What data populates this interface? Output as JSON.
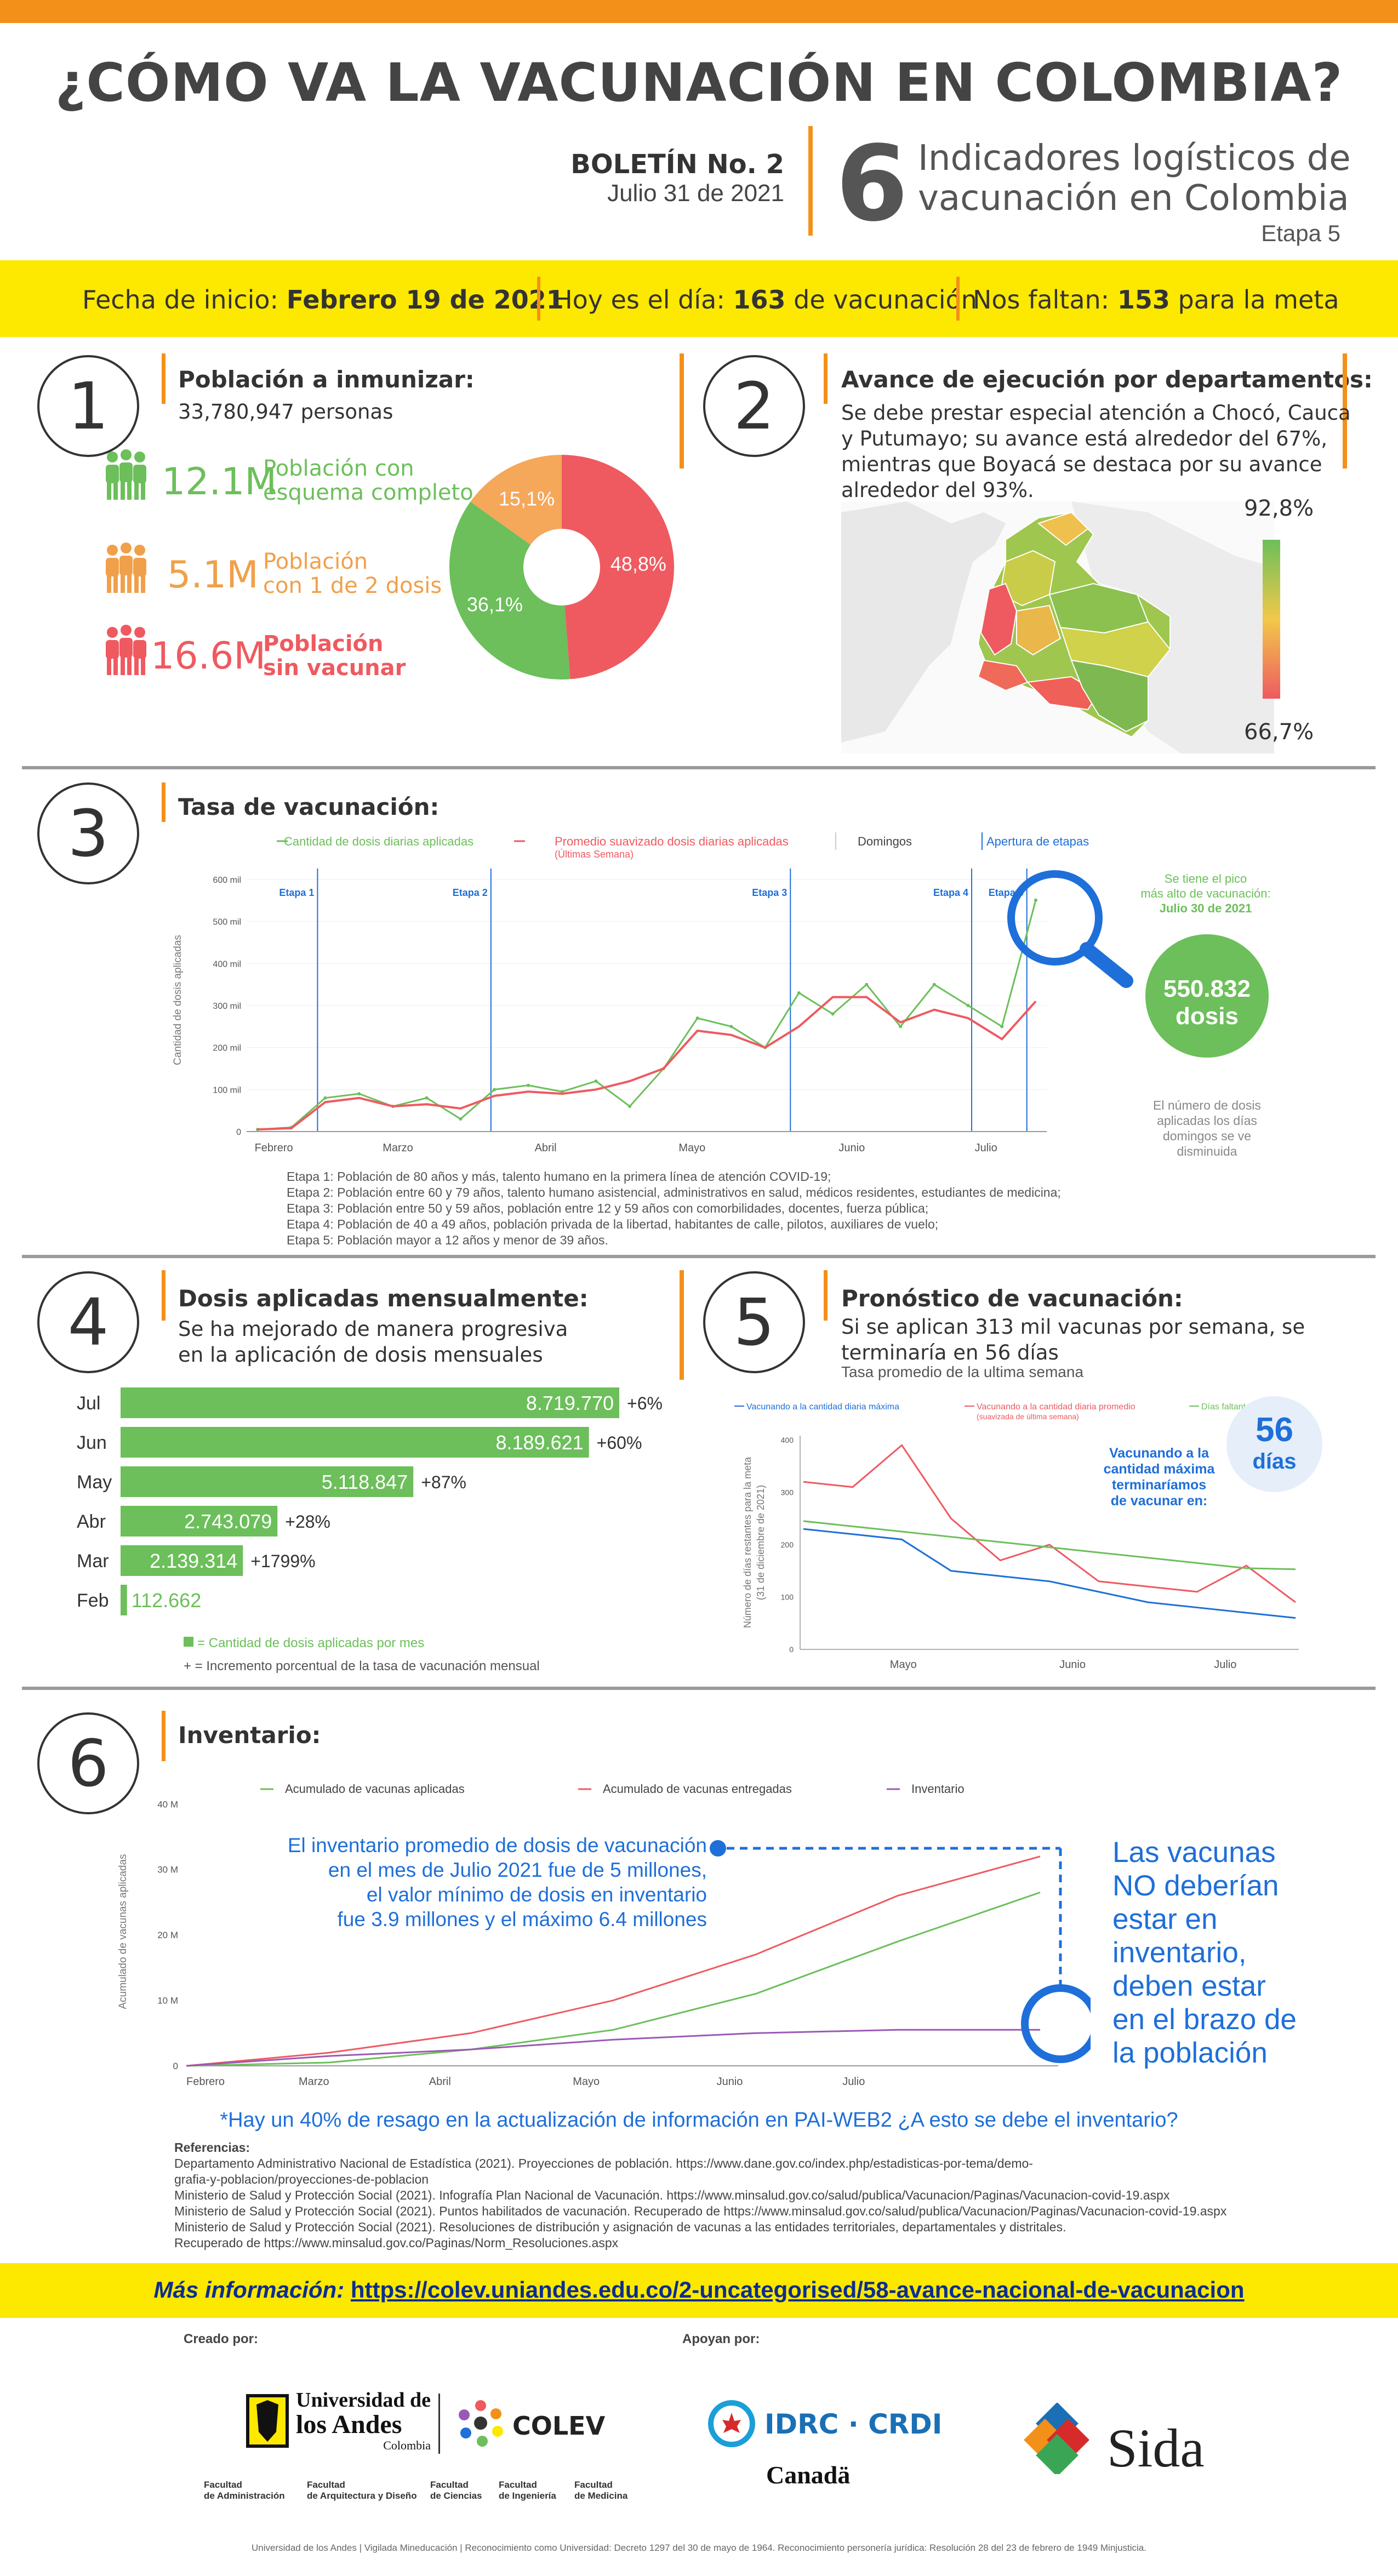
{
  "header": {
    "title": "¿CÓMO VA LA VACUNACIÓN EN COLOMBIA?",
    "boletin": "BOLETÍN No. 2",
    "fecha": "Julio 31 de 2021",
    "big_number": "6",
    "indicadores_line1": "Indicadores logísticos de",
    "indicadores_line2": "vacunación en Colombia",
    "etapa": "Etapa 5"
  },
  "yellow_bar": {
    "inicio_label": "Fecha de inicio:",
    "inicio_value": "Febrero 19 de 2021",
    "hoy_label": "Hoy es el día:",
    "hoy_value": "163",
    "hoy_suffix": "de vacunación",
    "faltan_label": "Nos faltan:",
    "faltan_value": "153",
    "faltan_suffix": "para la  meta"
  },
  "s1": {
    "number": "1",
    "title": "Población a inmunizar:",
    "subtitle": "33,780,947 personas",
    "items": [
      {
        "value": "12.1M",
        "line1": "Población con",
        "line2": "esquema completo",
        "color": "#6cbf5a"
      },
      {
        "value": "5.1M",
        "line1": "Población",
        "line2": "con 1 de 2 dosis",
        "color": "#f0a04b"
      },
      {
        "value": "16.6M",
        "line1": "Población",
        "line2": "sin vacunar",
        "color": "#ee5a60"
      }
    ],
    "pie": [
      {
        "label": "48,8%",
        "value": 48.8,
        "color": "#ee5a60"
      },
      {
        "label": "36,1%",
        "value": 36.1,
        "color": "#6cbf5a"
      },
      {
        "label": "15,1%",
        "value": 15.1,
        "color": "#f5a75a"
      }
    ]
  },
  "s2": {
    "number": "2",
    "title": "Avance de ejecución por departamentos:",
    "text": [
      "Se debe prestar especial atención a Chocó, Cauca",
      "y Putumayo; su avance está alrededor del 67%,",
      "mientras que Boyacá se destaca por su avance",
      "alrededor del 93%."
    ],
    "legend_max": "92,8%",
    "legend_min": "66,7%"
  },
  "s3": {
    "number": "3",
    "title": "Tasa de vacunación:",
    "legend": {
      "daily": "Cantidad de dosis diarias aplicadas",
      "avg": "Promedio suavizado dosis diarias aplicadas",
      "avg_sub": "(Últimas Semana)",
      "sundays": "Domingos",
      "stages": "Apertura de etapas"
    },
    "ylabel": "Cantidad de dosis aplicadas",
    "yticks": [
      "0",
      "100 mil",
      "200 mil",
      "300 mil",
      "400 mil",
      "500 mil",
      "600 mil"
    ],
    "months": [
      "Febrero",
      "Marzo",
      "Abril",
      "Mayo",
      "Junio",
      "Julio"
    ],
    "stage_labels": [
      "Etapa 1",
      "Etapa 2",
      "Etapa 3",
      "Etapa 4",
      "Etapa 5"
    ],
    "peak_note": [
      "Se tiene el pico",
      "más alto de vacunación:",
      "Julio 30 de 2021"
    ],
    "peak_value": "550.832",
    "peak_unit": "dosis",
    "sunday_note": [
      "El número de dosis",
      "aplicadas los días",
      "domingos se ve",
      "disminuida"
    ],
    "stage_notes": [
      "Etapa 1: Población de 80 años y más, talento humano en la primera línea de atención COVID-19;",
      "Etapa 2: Población entre 60 y 79 años, talento humano asistencial, administrativos en salud, médicos residentes, estudiantes de medicina;",
      "Etapa 3: Población entre 50 y 59 años, población entre 12 y 59 años con comorbilidades, docentes, fuerza pública;",
      "Etapa 4: Población de 40 a 49 años, población privada de la libertad, habitantes de calle, pilotos, auxiliares de vuelo;",
      "Etapa 5: Población mayor a 12 años y menor de 39 años."
    ]
  },
  "s4": {
    "number": "4",
    "title": "Dosis aplicadas mensualmente:",
    "text": [
      "Se ha mejorado de manera progresiva",
      "en la aplicación de dosis mensuales"
    ],
    "legend_bar": "= Cantidad de dosis aplicadas por mes",
    "legend_plus": "+ = Incremento porcentual de la tasa de vacunación mensual"
  },
  "s5": {
    "number": "5",
    "title": "Pronóstico de vacunación:",
    "text": [
      "Si se aplican 313 mil vacunas por semana, se",
      "terminaría en 56 días"
    ],
    "subtext": "Tasa promedio de la ultima semana",
    "legend": {
      "max": "Vacunando a la cantidad diaria máxima",
      "avg": "Vacunando a la cantidad diaria promedio",
      "avg_sub": "(suavizada de última semana)",
      "left": "Días faltantes del año"
    },
    "ylabel": [
      "Número de días restantes para la meta",
      "(31 de diciembre de 2021)"
    ],
    "yticks": [
      "0",
      "100",
      "200",
      "300",
      "400"
    ],
    "months": [
      "Mayo",
      "Junio",
      "Julio"
    ],
    "callout": [
      "Vacunando a la",
      "cantidad máxima",
      "terminaríamos",
      "de vacunar en:"
    ],
    "days_value": "56",
    "days_unit": "días"
  },
  "s6": {
    "number": "6",
    "title": "Inventario:",
    "legend": {
      "applied": "Acumulado de vacunas aplicadas",
      "delivered": "Acumulado de vacunas entregadas",
      "inventory": "Inventario"
    },
    "ylabel": "Acumulado de vacunas aplicadas",
    "yticks": [
      "0",
      "10 M",
      "20 M",
      "30 M",
      "40 M"
    ],
    "months": [
      "Febrero",
      "Marzo",
      "Abril",
      "Mayo",
      "Junio",
      "Julio"
    ],
    "note": [
      "El inventario promedio de dosis de vacunación",
      "en el mes de Julio 2021 fue de 5 millones,",
      "el valor mínimo de dosis en inventario",
      "fue 3.9 millones y el máximo 6.4 millones"
    ],
    "callout": [
      "Las vacunas",
      "NO deberían",
      "estar en",
      "inventario,",
      "deben estar",
      "en el brazo de",
      "la población"
    ],
    "footnote": "*Hay un 40% de resago en la actualización de información en PAI-WEB2 ¿A esto se debe el inventario?"
  },
  "references": {
    "title": "Referencias:",
    "lines": [
      "Departamento Administrativo Nacional de Estadística (2021). Proyecciones de población. https://www.dane.gov.co/index.php/estadisticas-por-tema/demo-",
      "grafia-y-poblacion/proyecciones-de-poblacion",
      "Ministerio de Salud y Protección Social (2021). Infografía Plan Nacional de Vacunación. https://www.minsalud.gov.co/salud/publica/Vacunacion/Paginas/Vacunacion-covid-19.aspx",
      "Ministerio de Salud y Protección Social (2021). Puntos habilitados de vacunación. Recuperado de https://www.minsalud.gov.co/salud/publica/Vacunacion/Paginas/Vacunacion-covid-19.aspx",
      "Ministerio de Salud y Protección Social (2021). Resoluciones de distribución y asignación de vacunas a las entidades territoriales, departamentales y distritales.",
      "Recuperado de https://www.minsalud.gov.co/Paginas/Norm_Resoluciones.aspx"
    ]
  },
  "more_info": {
    "label": "Más información:",
    "url": "https://colev.uniandes.edu.co/2-uncategorised/58-avance-nacional-de-vacunacion"
  },
  "footer": {
    "created_by": "Creado por:",
    "supported_by": "Apoyan por:",
    "uniandes_line1": "Universidad de",
    "uniandes_line2": "los Andes",
    "uniandes_line3": "Colombia",
    "colev": "COLEV",
    "idrc": "IDRC · CRDI",
    "canada": "Canadä",
    "sida": "Sida",
    "faculties": [
      [
        "Facultad",
        "de Administración"
      ],
      [
        "Facultad",
        "de Arquitectura y Diseño"
      ],
      [
        "Facultad",
        "de Ciencias"
      ],
      [
        "Facultad",
        "de Ingeniería"
      ],
      [
        "Facultad",
        "de Medicina"
      ]
    ],
    "legal": "Universidad de los Andes | Vigilada Mineducación | Reconocimiento como Universidad: Decreto 1297 del 30 de mayo de 1964. Reconocimiento personería jurídica: Resolución 28 del 23 de febrero de 1949 Minjusticia."
  },
  "chart_data": [
    {
      "type": "pie",
      "title": "Población a inmunizar",
      "categories": [
        "Sin vacunar",
        "Esquema completo",
        "1 de 2 dosis"
      ],
      "values": [
        48.8,
        36.1,
        15.1
      ]
    },
    {
      "type": "line",
      "title": "Tasa de vacunación",
      "ylabel": "Cantidad de dosis aplicadas",
      "ylim": [
        0,
        600000
      ],
      "x": [
        "Feb 19",
        "Feb 26",
        "Mar 5",
        "Mar 12",
        "Mar 19",
        "Mar 26",
        "Abr 2",
        "Abr 9",
        "Abr 16",
        "Abr 23",
        "Abr 30",
        "May 7",
        "May 14",
        "May 21",
        "May 28",
        "Jun 4",
        "Jun 11",
        "Jun 18",
        "Jun 25",
        "Jul 2",
        "Jul 9",
        "Jul 16",
        "Jul 23",
        "Jul 30"
      ],
      "series": [
        {
          "name": "Cantidad de dosis diarias aplicadas",
          "values": [
            5000,
            10000,
            80000,
            90000,
            60000,
            80000,
            30000,
            100000,
            110000,
            95000,
            120000,
            60000,
            150000,
            270000,
            250000,
            200000,
            330000,
            280000,
            350000,
            250000,
            350000,
            300000,
            250000,
            550832
          ]
        },
        {
          "name": "Promedio suavizado dosis diarias aplicadas",
          "values": [
            5000,
            8000,
            70000,
            80000,
            60000,
            65000,
            55000,
            85000,
            95000,
            90000,
            100000,
            120000,
            150000,
            240000,
            230000,
            200000,
            250000,
            320000,
            320000,
            260000,
            290000,
            270000,
            220000,
            310000
          ]
        }
      ],
      "stage_openings": [
        "Etapa 1",
        "Etapa 2",
        "Etapa 3",
        "Etapa 4",
        "Etapa 5"
      ]
    },
    {
      "type": "bar",
      "title": "Dosis aplicadas mensualmente",
      "categories": [
        "Jul",
        "Jun",
        "May",
        "Abr",
        "Mar",
        "Feb"
      ],
      "values": [
        8719770,
        8189621,
        5118847,
        2743079,
        2139314,
        112662
      ],
      "value_labels": [
        "8.719.770",
        "8.189.621",
        "5.118.847",
        "2.743.079",
        "2.139.314",
        "112.662"
      ],
      "increments": [
        "+6%",
        "+60%",
        "+87%",
        "+28%",
        "+1799%",
        ""
      ]
    },
    {
      "type": "line",
      "title": "Pronóstico de vacunación",
      "ylim": [
        0,
        400
      ],
      "x": [
        "Abr 20",
        "May 1",
        "May 10",
        "May 20",
        "Jun 1",
        "Jun 10",
        "Jun 20",
        "Jul 1",
        "Jul 10",
        "Jul 20",
        "Jul 31"
      ],
      "series": [
        {
          "name": "Vacunando a la cantidad diaria máxima",
          "values": [
            230,
            220,
            210,
            150,
            140,
            130,
            110,
            90,
            80,
            70,
            60
          ]
        },
        {
          "name": "Vacunando a la cantidad diaria promedio",
          "values": [
            320,
            310,
            390,
            250,
            170,
            200,
            130,
            120,
            110,
            160,
            90
          ]
        },
        {
          "name": "Días faltantes del año",
          "values": [
            245,
            235,
            225,
            215,
            205,
            195,
            185,
            175,
            165,
            155,
            153
          ]
        }
      ]
    },
    {
      "type": "line",
      "title": "Inventario",
      "ylabel": "Acumulado de vacunas aplicadas",
      "ylim": [
        0,
        40
      ],
      "x": [
        "Feb",
        "Mar",
        "Abr",
        "May",
        "Jun",
        "Jul",
        "Jul 31"
      ],
      "series": [
        {
          "name": "Acumulado de vacunas aplicadas",
          "values": [
            0,
            0.5,
            2.5,
            5.5,
            11,
            19,
            26.5
          ]
        },
        {
          "name": "Acumulado de vacunas entregadas",
          "values": [
            0,
            2,
            5,
            10,
            17,
            26,
            32
          ]
        },
        {
          "name": "Inventario",
          "values": [
            0,
            1.5,
            2.5,
            4,
            5,
            5.5,
            5.5
          ]
        }
      ]
    }
  ]
}
